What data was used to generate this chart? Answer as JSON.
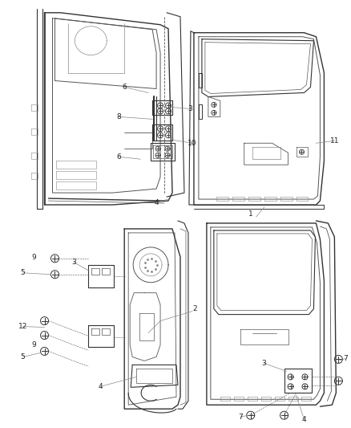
{
  "bg_color": "#ffffff",
  "fig_width": 4.38,
  "fig_height": 5.33,
  "dpi": 100,
  "line_color": "#555555",
  "dark_color": "#333333",
  "light_color": "#888888",
  "label_color": "#222222",
  "label_fontsize": 6.5
}
